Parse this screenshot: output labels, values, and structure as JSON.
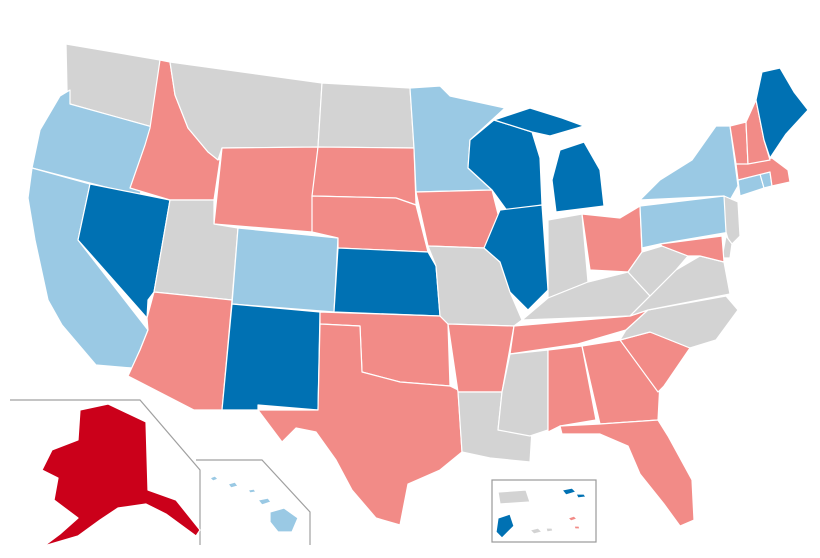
{
  "map": {
    "type": "us-states-choropleth",
    "legend": [],
    "colors": {
      "dark-blue": "#0071b3",
      "light-blue": "#9ac9e4",
      "dark-red": "#cb001a",
      "light-red": "#f28b87",
      "gray": "#d3d3d3"
    },
    "states": [
      {
        "id": "WA",
        "category": "gray"
      },
      {
        "id": "OR",
        "category": "light-blue"
      },
      {
        "id": "CA",
        "category": "light-blue"
      },
      {
        "id": "NV",
        "category": "dark-blue"
      },
      {
        "id": "ID",
        "category": "light-red"
      },
      {
        "id": "MT",
        "category": "gray"
      },
      {
        "id": "WY",
        "category": "light-red"
      },
      {
        "id": "UT",
        "category": "gray"
      },
      {
        "id": "AZ",
        "category": "light-red"
      },
      {
        "id": "CO",
        "category": "light-blue"
      },
      {
        "id": "NM",
        "category": "dark-blue"
      },
      {
        "id": "ND",
        "category": "gray"
      },
      {
        "id": "SD",
        "category": "light-red"
      },
      {
        "id": "NE",
        "category": "light-red"
      },
      {
        "id": "KS",
        "category": "dark-blue"
      },
      {
        "id": "OK",
        "category": "light-red"
      },
      {
        "id": "TX",
        "category": "light-red"
      },
      {
        "id": "MN",
        "category": "light-blue"
      },
      {
        "id": "IA",
        "category": "light-red"
      },
      {
        "id": "MO",
        "category": "gray"
      },
      {
        "id": "AR",
        "category": "light-red"
      },
      {
        "id": "LA",
        "category": "gray"
      },
      {
        "id": "WI",
        "category": "dark-blue"
      },
      {
        "id": "IL",
        "category": "dark-blue"
      },
      {
        "id": "MI",
        "category": "dark-blue"
      },
      {
        "id": "IN",
        "category": "gray"
      },
      {
        "id": "OH",
        "category": "light-red"
      },
      {
        "id": "KY",
        "category": "gray"
      },
      {
        "id": "TN",
        "category": "light-red"
      },
      {
        "id": "MS",
        "category": "gray"
      },
      {
        "id": "AL",
        "category": "light-red"
      },
      {
        "id": "GA",
        "category": "light-red"
      },
      {
        "id": "FL",
        "category": "light-red"
      },
      {
        "id": "SC",
        "category": "light-red"
      },
      {
        "id": "NC",
        "category": "gray"
      },
      {
        "id": "VA",
        "category": "gray"
      },
      {
        "id": "WV",
        "category": "gray"
      },
      {
        "id": "PA",
        "category": "light-blue"
      },
      {
        "id": "NY",
        "category": "light-blue"
      },
      {
        "id": "NJ",
        "category": "gray"
      },
      {
        "id": "DE",
        "category": "gray"
      },
      {
        "id": "MD",
        "category": "light-red"
      },
      {
        "id": "CT",
        "category": "light-blue"
      },
      {
        "id": "RI",
        "category": "light-blue"
      },
      {
        "id": "MA",
        "category": "light-red"
      },
      {
        "id": "VT",
        "category": "light-red"
      },
      {
        "id": "NH",
        "category": "light-red"
      },
      {
        "id": "ME",
        "category": "dark-blue"
      },
      {
        "id": "AK",
        "category": "dark-red"
      },
      {
        "id": "HI",
        "category": "light-blue"
      },
      {
        "id": "PR",
        "category": "gray"
      },
      {
        "id": "VI",
        "category": "dark-blue"
      },
      {
        "id": "GU",
        "category": "dark-blue"
      },
      {
        "id": "MP",
        "category": "gray"
      },
      {
        "id": "AS",
        "category": "light-red"
      }
    ]
  }
}
